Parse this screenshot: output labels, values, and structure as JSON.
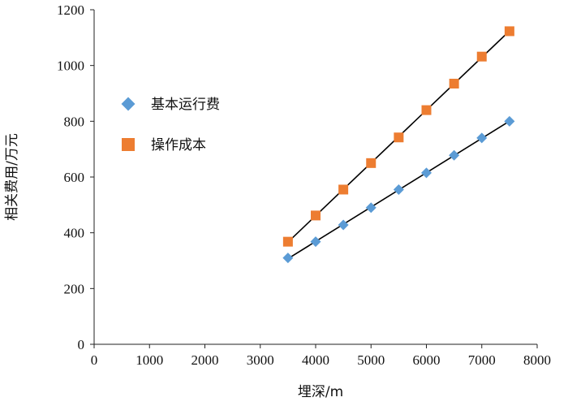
{
  "chart_data": {
    "type": "scatter",
    "xlabel": "埋深/m",
    "ylabel": "相关费用/万元",
    "xlim": [
      0,
      8000
    ],
    "ylim": [
      0,
      1200
    ],
    "xticks": [
      0,
      1000,
      2000,
      3000,
      4000,
      5000,
      6000,
      7000,
      8000
    ],
    "yticks": [
      0,
      200,
      400,
      600,
      800,
      1000,
      1200
    ],
    "grid": false,
    "legend_position": "left-middle",
    "trendlines": true,
    "series": [
      {
        "name": "基本运行费",
        "marker": "diamond",
        "color": "#5B9BD5",
        "x": [
          3500,
          4000,
          4500,
          5000,
          5500,
          6000,
          6500,
          7000,
          7500
        ],
        "y": [
          310,
          368,
          428,
          490,
          555,
          615,
          678,
          740,
          800
        ]
      },
      {
        "name": "操作成本",
        "marker": "square",
        "color": "#ED7D31",
        "x": [
          3500,
          4000,
          4500,
          5000,
          5500,
          6000,
          6500,
          7000,
          7500
        ],
        "y": [
          368,
          462,
          555,
          650,
          742,
          840,
          935,
          1032,
          1123
        ]
      }
    ]
  }
}
